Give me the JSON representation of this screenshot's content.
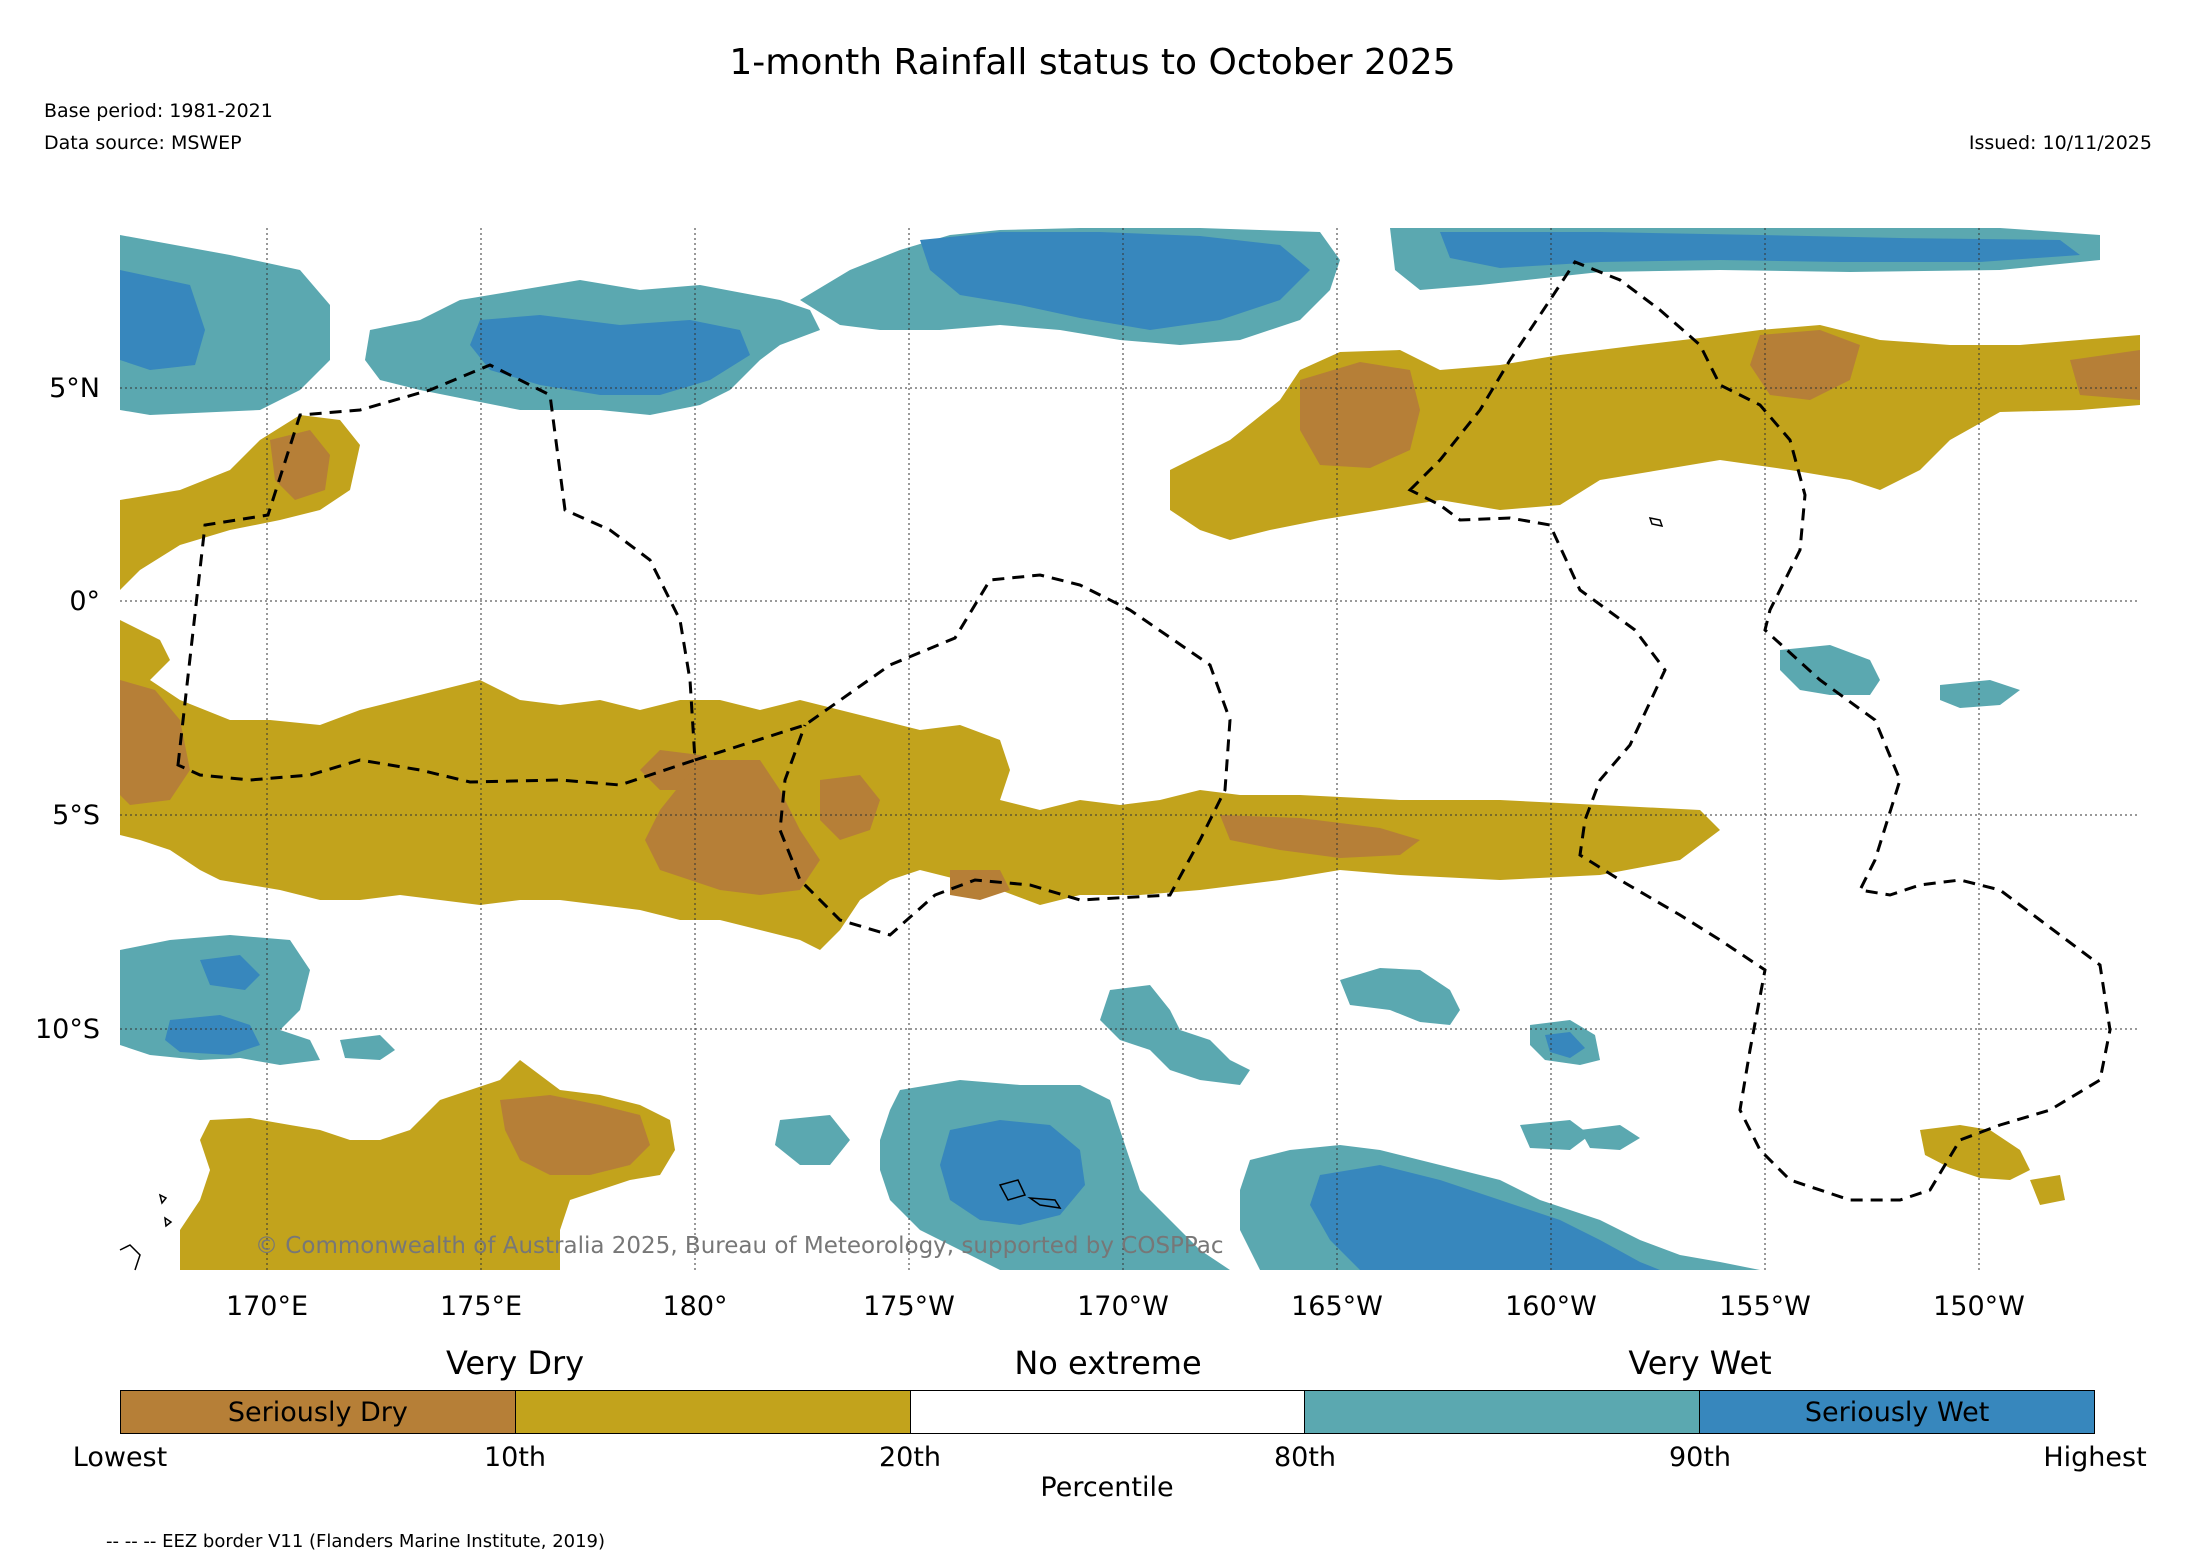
{
  "title": "1-month Rainfall status to October 2025",
  "base_period": "Base period: 1981-2021",
  "data_source": "Data source: MSWEP",
  "issued": "Issued: 10/11/2025",
  "copyright": "© Commonwealth of Australia 2025, Bureau of Meteorology, supported by COSPPac",
  "map": {
    "lon_labels": [
      "170°E",
      "175°E",
      "180°",
      "175°W",
      "170°W",
      "165°W",
      "160°W",
      "155°W",
      "150°W"
    ],
    "lat_labels": [
      "5°N",
      "0°",
      "5°S",
      "10°S"
    ],
    "boundary_style": "dashed"
  },
  "legend": {
    "category_labels": [
      "Very Dry",
      "No extreme",
      "Very Wet"
    ],
    "segments": [
      {
        "label": "Seriously Dry",
        "color": "#b67f37"
      },
      {
        "label": "",
        "color": "#c2a31c"
      },
      {
        "label": "",
        "color": "#ffffff"
      },
      {
        "label": "",
        "color": "#5ba8b0"
      },
      {
        "label": "Seriously Wet",
        "color": "#3787bd"
      }
    ],
    "percentile_ticks": [
      "Lowest",
      "10th",
      "20th",
      "80th",
      "90th",
      "Highest"
    ],
    "axis_label": "Percentile"
  },
  "eez_note": "-- -- -- EEZ border V11 (Flanders Marine Institute, 2019)"
}
